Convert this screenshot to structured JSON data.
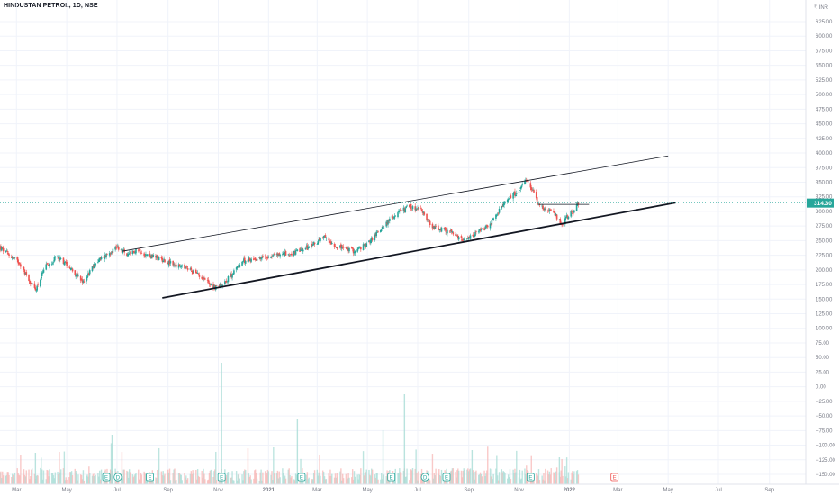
{
  "header": {
    "title": "HINDUSTAN PETROL, 1D, NSE",
    "currency": "₹ INR"
  },
  "colors": {
    "up": "#26a69a",
    "down": "#ef5350",
    "trendline": "#131722",
    "grid": "#f0f3fa",
    "axis_text": "#787b86",
    "price_line": "#26a69a",
    "marker": "#26a69a",
    "marker_future": "#ef5350"
  },
  "chart_data": {
    "type": "candlestick",
    "title": "HINDUSTAN PETROL, 1D, NSE",
    "xlabel": "",
    "ylabel": "",
    "ylim": [
      -162.5,
      650
    ],
    "y_ticks": [
      625,
      600,
      575,
      550,
      525,
      500,
      475,
      450,
      425,
      400,
      375,
      350,
      325,
      300,
      275,
      250,
      225,
      200,
      175,
      150,
      125,
      100,
      75,
      50,
      25,
      0,
      -25,
      -50,
      -75,
      -100,
      -125,
      -150
    ],
    "y_tick_labels": [
      "625.00",
      "600.00",
      "575.00",
      "550.00",
      "525.00",
      "500.00",
      "475.00",
      "450.00",
      "425.00",
      "400.00",
      "375.00",
      "350.00",
      "325.00",
      "300.00",
      "275.00",
      "250.00",
      "225.00",
      "200.00",
      "175.00",
      "150.00",
      "125.00",
      "100.00",
      "75.00",
      "50.00",
      "25.00",
      "0.00",
      "−25.00",
      "−50.00",
      "−75.00",
      "−100.00",
      "−125.00",
      "−150.00"
    ],
    "x_range": [
      "2020-02-10",
      "2022-10-15"
    ],
    "x_ticks": [
      {
        "date": "2020-03-01",
        "label": "Mar"
      },
      {
        "date": "2020-05-01",
        "label": "May"
      },
      {
        "date": "2020-07-01",
        "label": "Jul"
      },
      {
        "date": "2020-09-01",
        "label": "Sep"
      },
      {
        "date": "2020-11-01",
        "label": "Nov"
      },
      {
        "date": "2021-01-01",
        "label": "2021"
      },
      {
        "date": "2021-03-01",
        "label": "Mar"
      },
      {
        "date": "2021-05-01",
        "label": "May"
      },
      {
        "date": "2021-07-01",
        "label": "Jul"
      },
      {
        "date": "2021-09-01",
        "label": "Sep"
      },
      {
        "date": "2021-11-01",
        "label": "Nov"
      },
      {
        "date": "2022-01-01",
        "label": "2022"
      },
      {
        "date": "2022-03-01",
        "label": "Mar"
      },
      {
        "date": "2022-05-01",
        "label": "May"
      },
      {
        "date": "2022-07-01",
        "label": "Jul"
      },
      {
        "date": "2022-09-01",
        "label": "Sep"
      }
    ],
    "close_path": [
      [
        "2020-02-10",
        238
      ],
      [
        "2020-02-24",
        222
      ],
      [
        "2020-03-05",
        212
      ],
      [
        "2020-03-15",
        185
      ],
      [
        "2020-03-24",
        165
      ],
      [
        "2020-04-05",
        205
      ],
      [
        "2020-04-20",
        222
      ],
      [
        "2020-05-05",
        205
      ],
      [
        "2020-05-20",
        178
      ],
      [
        "2020-06-05",
        212
      ],
      [
        "2020-06-20",
        228
      ],
      [
        "2020-07-01",
        240
      ],
      [
        "2020-07-08",
        232
      ],
      [
        "2020-07-15",
        224
      ],
      [
        "2020-07-25",
        236
      ],
      [
        "2020-08-05",
        226
      ],
      [
        "2020-08-25",
        218
      ],
      [
        "2020-09-10",
        208
      ],
      [
        "2020-09-28",
        200
      ],
      [
        "2020-10-12",
        188
      ],
      [
        "2020-10-28",
        170
      ],
      [
        "2020-11-05",
        175
      ],
      [
        "2020-11-15",
        188
      ],
      [
        "2020-11-30",
        215
      ],
      [
        "2020-12-20",
        220
      ],
      [
        "2021-01-10",
        226
      ],
      [
        "2021-01-30",
        228
      ],
      [
        "2021-02-15",
        236
      ],
      [
        "2021-03-01",
        248
      ],
      [
        "2021-03-10",
        255
      ],
      [
        "2021-03-25",
        240
      ],
      [
        "2021-04-15",
        232
      ],
      [
        "2021-05-01",
        244
      ],
      [
        "2021-05-20",
        275
      ],
      [
        "2021-06-05",
        295
      ],
      [
        "2021-06-20",
        308
      ],
      [
        "2021-07-05",
        302
      ],
      [
        "2021-07-20",
        272
      ],
      [
        "2021-08-10",
        265
      ],
      [
        "2021-08-25",
        248
      ],
      [
        "2021-09-10",
        262
      ],
      [
        "2021-09-25",
        275
      ],
      [
        "2021-10-05",
        295
      ],
      [
        "2021-10-20",
        325
      ],
      [
        "2021-11-01",
        335
      ],
      [
        "2021-11-10",
        352
      ],
      [
        "2021-11-18",
        335
      ],
      [
        "2021-11-25",
        312
      ],
      [
        "2021-12-05",
        302
      ],
      [
        "2021-12-15",
        295
      ],
      [
        "2021-12-22",
        278
      ],
      [
        "2022-01-01",
        295
      ],
      [
        "2022-01-07",
        300
      ],
      [
        "2022-01-12",
        314.3
      ]
    ],
    "volume_bars": 24,
    "last_price": 314.3,
    "last_price_label": "314.30",
    "trendlines": [
      {
        "name": "upper-channel",
        "from": [
          "2020-07-08",
          232
        ],
        "to": [
          "2022-05-01",
          395
        ],
        "weight": "thin"
      },
      {
        "name": "lower-channel",
        "from": [
          "2020-08-25",
          152
        ],
        "to": [
          "2022-05-10",
          315
        ],
        "weight": "bold"
      },
      {
        "name": "horizontal-resistance",
        "from": [
          "2021-11-25",
          312
        ],
        "to": [
          "2022-01-25",
          312
        ],
        "weight": "thin"
      }
    ],
    "event_markers": [
      {
        "date": "2020-06-18",
        "label": "E"
      },
      {
        "date": "2020-07-02",
        "label": "D"
      },
      {
        "date": "2020-08-10",
        "label": "E"
      },
      {
        "date": "2020-11-05",
        "label": "E"
      },
      {
        "date": "2021-02-10",
        "label": "E"
      },
      {
        "date": "2021-05-30",
        "label": "E"
      },
      {
        "date": "2021-07-10",
        "label": "D"
      },
      {
        "date": "2021-08-05",
        "label": "E"
      },
      {
        "date": "2021-11-15",
        "label": "E"
      },
      {
        "date": "2022-02-25",
        "label": "E",
        "future": true
      }
    ]
  }
}
